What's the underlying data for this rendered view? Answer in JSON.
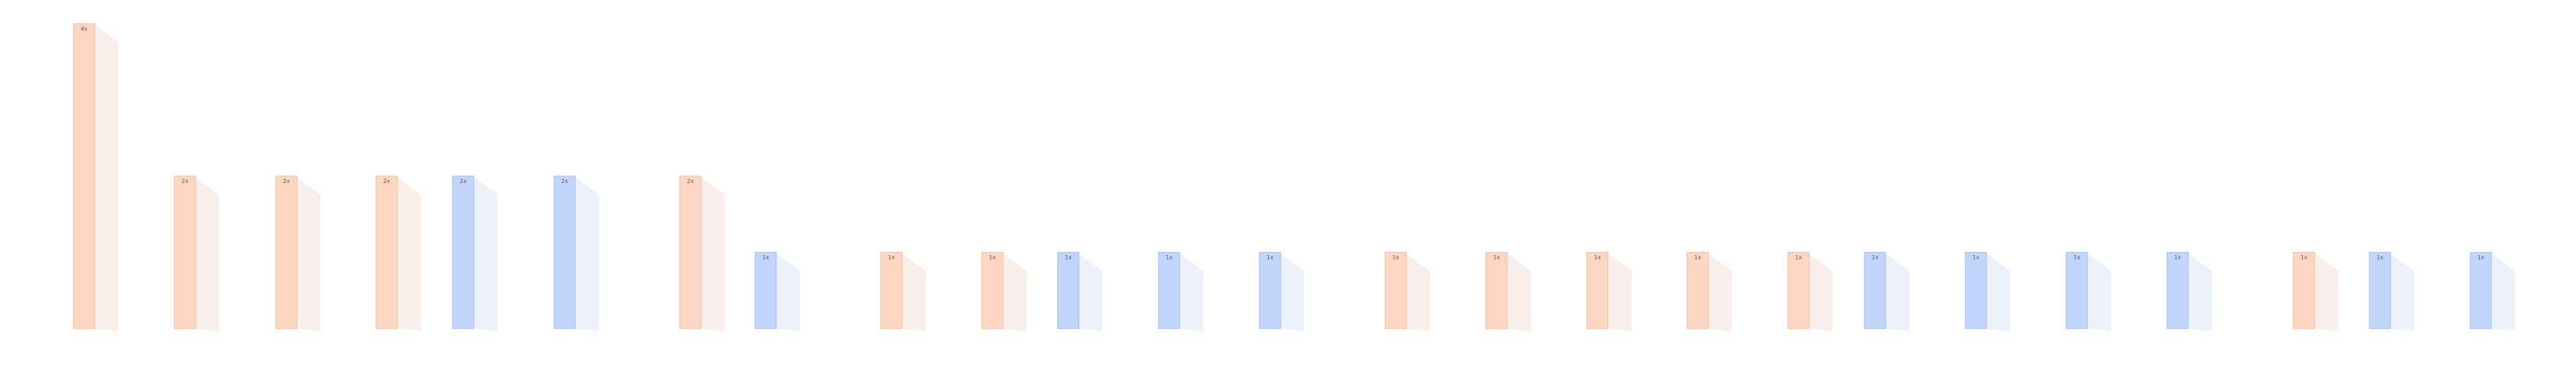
{
  "chart_data": {
    "type": "bar",
    "title": "",
    "xlabel": "",
    "ylabel": "",
    "ylim": [
      0,
      4
    ],
    "grid": false,
    "legend": "none",
    "colors": {
      "orange": {
        "fill": "#fdd7c2",
        "stroke": "#f0b896",
        "shadow": "#f4e2d8"
      },
      "blue": {
        "fill": "#c2d6fb",
        "stroke": "#9bbcf0",
        "shadow": "#dde6f6"
      }
    },
    "bars": [
      {
        "value": 4,
        "label": "4x",
        "color": "orange"
      },
      {
        "value": 2,
        "label": "2x",
        "color": "orange"
      },
      {
        "value": 2,
        "label": "2x",
        "color": "orange"
      },
      {
        "value": 2,
        "label": "2x",
        "color": "orange"
      },
      {
        "value": 2,
        "label": "2x",
        "color": "blue"
      },
      {
        "value": 2,
        "label": "2x",
        "color": "blue"
      },
      {
        "value": 2,
        "label": "2x",
        "color": "orange"
      },
      {
        "value": 1,
        "label": "1x",
        "color": "blue"
      },
      {
        "value": 1,
        "label": "1x",
        "color": "orange"
      },
      {
        "value": 1,
        "label": "1x",
        "color": "orange"
      },
      {
        "value": 1,
        "label": "1x",
        "color": "blue"
      },
      {
        "value": 1,
        "label": "1x",
        "color": "blue"
      },
      {
        "value": 1,
        "label": "1x",
        "color": "blue"
      },
      {
        "value": 1,
        "label": "1x",
        "color": "orange"
      },
      {
        "value": 1,
        "label": "1x",
        "color": "orange"
      },
      {
        "value": 1,
        "label": "1x",
        "color": "orange"
      },
      {
        "value": 1,
        "label": "1x",
        "color": "orange"
      },
      {
        "value": 1,
        "label": "1x",
        "color": "orange"
      },
      {
        "value": 1,
        "label": "1x",
        "color": "blue"
      },
      {
        "value": 1,
        "label": "1x",
        "color": "blue"
      },
      {
        "value": 1,
        "label": "1x",
        "color": "blue"
      },
      {
        "value": 1,
        "label": "1x",
        "color": "blue"
      },
      {
        "value": 1,
        "label": "1x",
        "color": "orange"
      },
      {
        "value": 1,
        "label": "1x",
        "color": "blue"
      },
      {
        "value": 1,
        "label": "1x",
        "color": "blue"
      }
    ]
  }
}
